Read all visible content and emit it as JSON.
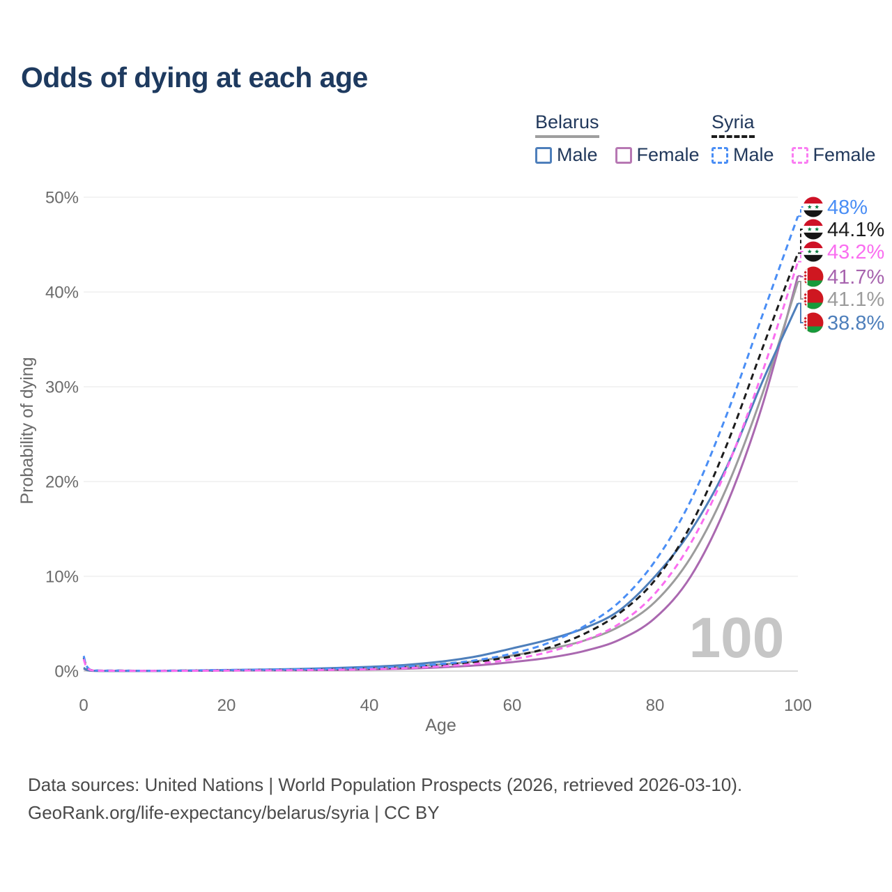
{
  "title": "Odds of dying at each age",
  "legend": {
    "groups": [
      {
        "key": "belarus_total",
        "label": "Belarus",
        "underline_style": "solid",
        "underline_color": "#9e9e9e",
        "items": [
          {
            "key": "belarus_male",
            "label": "Male",
            "color": "#4e7fbb",
            "style": "solid"
          },
          {
            "key": "belarus_female",
            "label": "Female",
            "color": "#b778b3",
            "style": "solid"
          }
        ]
      },
      {
        "key": "syria_total",
        "label": "Syria",
        "underline_style": "dashed",
        "underline_color": "#1c1c1c",
        "items": [
          {
            "key": "syria_male",
            "label": "Male",
            "color": "#4a8ef5",
            "style": "dashed"
          },
          {
            "key": "syria_female",
            "label": "Female",
            "color": "#fa7df2",
            "style": "dashed"
          }
        ]
      }
    ]
  },
  "chart_data": {
    "type": "line",
    "title": "Odds of dying at each age",
    "xlabel": "Age",
    "ylabel": "Probability of dying",
    "xlim": [
      0,
      100
    ],
    "ylim": [
      0,
      50
    ],
    "xticks": [
      0,
      20,
      40,
      60,
      80,
      100
    ],
    "ytick_values": [
      0,
      10,
      20,
      30,
      40,
      50
    ],
    "ytick_labels": [
      "0%",
      "10%",
      "20%",
      "30%",
      "40%",
      "50%"
    ],
    "grid": true,
    "legend_position": "top-right",
    "watermark": "100",
    "x": [
      0,
      1,
      5,
      10,
      15,
      20,
      25,
      30,
      35,
      40,
      45,
      50,
      55,
      60,
      65,
      70,
      75,
      80,
      85,
      90,
      95,
      100
    ],
    "series": [
      {
        "key": "belarus_female",
        "name": "Belarus Female",
        "country": "Belarus",
        "sex": "Female",
        "color": "#aa68b0",
        "dash": "solid",
        "values": [
          0.27,
          0.04,
          0.02,
          0.02,
          0.03,
          0.05,
          0.07,
          0.09,
          0.12,
          0.17,
          0.25,
          0.4,
          0.6,
          0.95,
          1.4,
          2.1,
          3.3,
          5.6,
          10.0,
          17.5,
          28.0,
          41.7
        ]
      },
      {
        "key": "belarus_total",
        "name": "Belarus Both sexes",
        "country": "Belarus",
        "sex": "Total",
        "color": "#9c9c9c",
        "dash": "solid",
        "values": [
          0.31,
          0.05,
          0.02,
          0.02,
          0.05,
          0.08,
          0.11,
          0.15,
          0.22,
          0.31,
          0.45,
          0.7,
          1.05,
          1.65,
          2.3,
          3.2,
          4.7,
          7.3,
          12.0,
          19.3,
          29.2,
          41.1
        ]
      },
      {
        "key": "belarus_male",
        "name": "Belarus Male",
        "country": "Belarus",
        "sex": "Male",
        "color": "#4e7fbb",
        "dash": "solid",
        "values": [
          0.35,
          0.05,
          0.02,
          0.02,
          0.06,
          0.11,
          0.16,
          0.22,
          0.32,
          0.45,
          0.65,
          1.0,
          1.55,
          2.4,
          3.3,
          4.5,
          6.4,
          10.0,
          14.8,
          21.5,
          30.5,
          38.8
        ]
      },
      {
        "key": "syria_total",
        "name": "Syria Both sexes",
        "country": "Syria",
        "sex": "Total",
        "color": "#1c1c1c",
        "dash": "dashed",
        "values": [
          1.43,
          0.11,
          0.05,
          0.04,
          0.06,
          0.09,
          0.12,
          0.14,
          0.19,
          0.27,
          0.4,
          0.63,
          0.97,
          1.55,
          2.45,
          3.9,
          6.1,
          9.6,
          15.4,
          23.8,
          34.0,
          44.1
        ]
      },
      {
        "key": "syria_male",
        "name": "Syria Male",
        "country": "Syria",
        "sex": "Male",
        "color": "#4a8ef5",
        "dash": "dashed",
        "values": [
          1.6,
          0.12,
          0.05,
          0.04,
          0.07,
          0.12,
          0.15,
          0.18,
          0.24,
          0.33,
          0.48,
          0.75,
          1.15,
          1.85,
          2.95,
          4.7,
          7.3,
          11.6,
          18.0,
          27.0,
          37.5,
          48.0
        ]
      },
      {
        "key": "syria_female",
        "name": "Syria Female",
        "country": "Syria",
        "sex": "Female",
        "color": "#fa6ef0",
        "dash": "dashed",
        "values": [
          1.25,
          0.1,
          0.04,
          0.03,
          0.04,
          0.06,
          0.08,
          0.1,
          0.14,
          0.2,
          0.31,
          0.5,
          0.78,
          1.25,
          2.0,
          3.2,
          5.0,
          8.2,
          13.5,
          21.3,
          31.5,
          43.2
        ]
      }
    ],
    "end_labels": [
      {
        "series": "syria_male",
        "flag": "syria-flag",
        "text": "48%",
        "value": 48.0,
        "color": "#4a8ef5"
      },
      {
        "series": "syria_total",
        "flag": "syria-flag",
        "text": "44.1%",
        "value": 44.1,
        "color": "#1c1c1c"
      },
      {
        "series": "syria_female",
        "flag": "syria-flag",
        "text": "43.2%",
        "value": 43.2,
        "color": "#fa6ef0"
      },
      {
        "series": "belarus_female",
        "flag": "belarus-flag",
        "text": "41.7%",
        "value": 41.7,
        "color": "#a763ae"
      },
      {
        "series": "belarus_total",
        "flag": "belarus-flag",
        "text": "41.1%",
        "value": 41.1,
        "color": "#9c9c9c"
      },
      {
        "series": "belarus_male",
        "flag": "belarus-flag",
        "text": "38.8%",
        "value": 38.8,
        "color": "#4e7fbb"
      }
    ]
  },
  "footer": {
    "line1": "Data sources: United Nations | World Population Prospects (2026, retrieved 2026-03-10).",
    "line2": "GeoRank.org/life-expectancy/belarus/syria | CC BY"
  }
}
